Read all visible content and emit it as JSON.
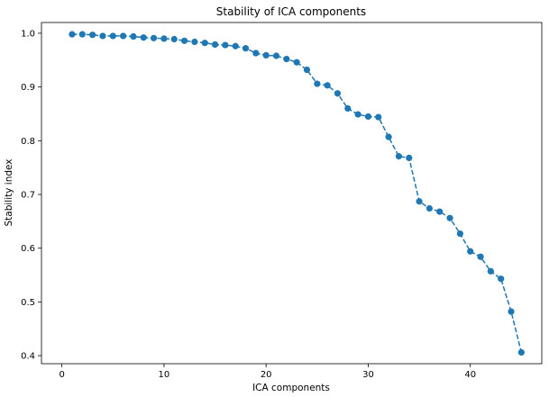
{
  "chart_data": {
    "type": "line",
    "title": "Stability of ICA components",
    "xlabel": "ICA components",
    "ylabel": "Stability index",
    "xlim": [
      -2,
      47
    ],
    "ylim": [
      0.385,
      1.02
    ],
    "xticks": [
      0,
      10,
      20,
      30,
      40
    ],
    "yticks": [
      0.4,
      0.5,
      0.6,
      0.7,
      0.8,
      0.9,
      1.0
    ],
    "ytick_labels": [
      "0.4",
      "0.5",
      "0.6",
      "0.7",
      "0.8",
      "0.9",
      "1.0"
    ],
    "grid": false,
    "line_style": "dashed",
    "marker": "circle",
    "color": "#1f77b4",
    "x": [
      1,
      2,
      3,
      4,
      5,
      6,
      7,
      8,
      9,
      10,
      11,
      12,
      13,
      14,
      15,
      16,
      17,
      18,
      19,
      20,
      21,
      22,
      23,
      24,
      25,
      26,
      27,
      28,
      29,
      30,
      31,
      32,
      33,
      34,
      35,
      36,
      37,
      38,
      39,
      40,
      41,
      42,
      43,
      44,
      45
    ],
    "y": [
      0.998,
      0.998,
      0.997,
      0.995,
      0.995,
      0.995,
      0.994,
      0.992,
      0.991,
      0.99,
      0.989,
      0.986,
      0.984,
      0.982,
      0.979,
      0.978,
      0.976,
      0.972,
      0.963,
      0.959,
      0.958,
      0.952,
      0.946,
      0.932,
      0.906,
      0.903,
      0.888,
      0.86,
      0.849,
      0.845,
      0.844,
      0.807,
      0.771,
      0.768,
      0.687,
      0.674,
      0.668,
      0.656,
      0.627,
      0.594,
      0.584,
      0.557,
      0.543,
      0.482,
      0.406
    ]
  }
}
